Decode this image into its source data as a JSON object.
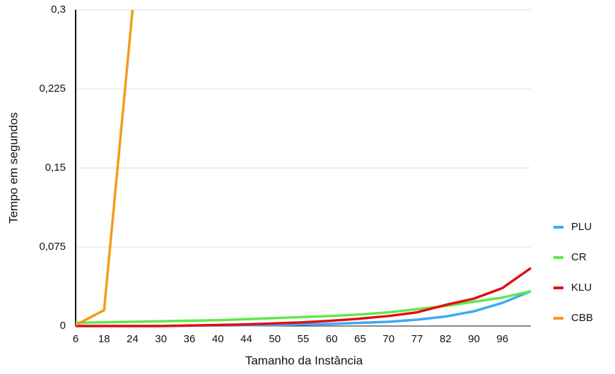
{
  "chart_data": {
    "type": "line",
    "x_label": "Tamanho da Instância",
    "y_label": "Tempo em segundos",
    "categories": [
      "6",
      "18",
      "24",
      "30",
      "36",
      "40",
      "44",
      "50",
      "55",
      "60",
      "65",
      "70",
      "77",
      "82",
      "90",
      "96",
      null
    ],
    "series": [
      {
        "name": "PLU",
        "color": "#3fa9f5",
        "values": [
          0,
          0,
          0,
          0,
          0.0003,
          0.0005,
          0.0008,
          0.001,
          0.0015,
          0.002,
          0.003,
          0.004,
          0.006,
          0.009,
          0.014,
          0.022,
          0.033
        ]
      },
      {
        "name": "CR",
        "color": "#5fe84a",
        "values": [
          0.003,
          0.0035,
          0.004,
          0.0045,
          0.005,
          0.0055,
          0.0065,
          0.0075,
          0.0085,
          0.0095,
          0.011,
          0.013,
          0.016,
          0.019,
          0.023,
          0.027,
          0.033
        ]
      },
      {
        "name": "KLU",
        "color": "#e01010",
        "values": [
          0,
          0,
          0,
          0,
          0.0005,
          0.001,
          0.0015,
          0.0025,
          0.0035,
          0.005,
          0.007,
          0.0095,
          0.013,
          0.02,
          0.026,
          0.036,
          0.055
        ]
      },
      {
        "name": "CBB",
        "color": "#f79a1c",
        "values": [
          0.001,
          0.015,
          0.3,
          null,
          null,
          null,
          null,
          null,
          null,
          null,
          null,
          null,
          null,
          null,
          null,
          null,
          null
        ]
      }
    ],
    "ylim": [
      0,
      0.3
    ],
    "yticks": [
      0,
      {
        "value": 0.075,
        "label": "0,075"
      },
      {
        "value": 0.15,
        "label": "0,15"
      },
      {
        "value": 0.225,
        "label": "0,225"
      },
      {
        "value": 0.3,
        "label": "0,3"
      }
    ],
    "grid": true,
    "legend": "right"
  }
}
